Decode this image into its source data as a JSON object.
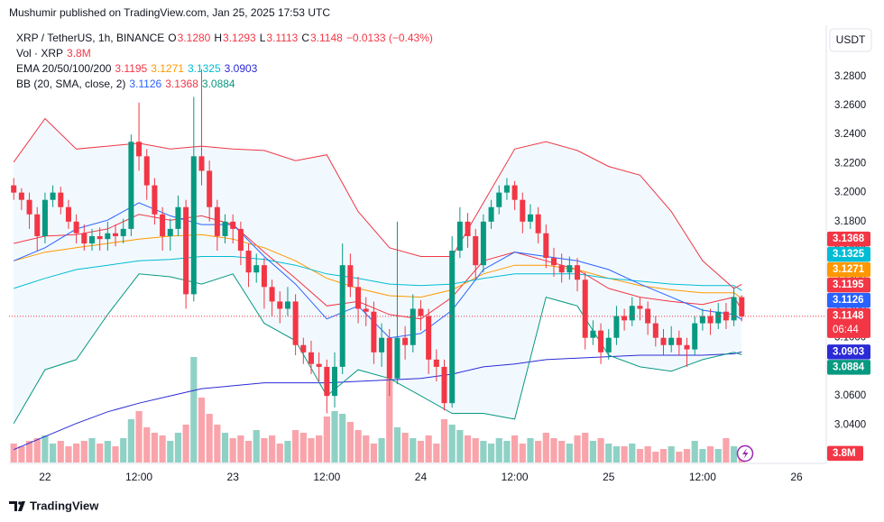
{
  "header": "Mushumir published on TradingView.com, Jan 25, 2025 17:53 UTC",
  "footer": "TradingView",
  "currency_button": "USDT",
  "chart_data": {
    "type": "candlestick",
    "symbol": "XRP / TetherUS, 1h, BINANCE",
    "ohlc_letters": [
      "O",
      "H",
      "L",
      "C"
    ],
    "last_bar_labels": [
      "3.1280",
      "3.1293",
      "3.1113",
      "3.1148"
    ],
    "change": "−0.0133 (−0.43%)",
    "countdown": "06:44",
    "up_color": "#089981",
    "down_color": "#f23645",
    "ohlc": [
      [
        3.205,
        3.21,
        3.195,
        3.2
      ],
      [
        3.2,
        3.203,
        3.188,
        3.195
      ],
      [
        3.195,
        3.2,
        3.175,
        3.185
      ],
      [
        3.185,
        3.19,
        3.16,
        3.17
      ],
      [
        3.17,
        3.2,
        3.165,
        3.195
      ],
      [
        3.195,
        3.205,
        3.19,
        3.2
      ],
      [
        3.2,
        3.204,
        3.185,
        3.19
      ],
      [
        3.19,
        3.195,
        3.175,
        3.18
      ],
      [
        3.18,
        3.185,
        3.165,
        3.172
      ],
      [
        3.172,
        3.178,
        3.16,
        3.165
      ],
      [
        3.165,
        3.175,
        3.16,
        3.17
      ],
      [
        3.17,
        3.176,
        3.16,
        3.168
      ],
      [
        3.168,
        3.18,
        3.16,
        3.172
      ],
      [
        3.172,
        3.178,
        3.163,
        3.17
      ],
      [
        3.17,
        3.182,
        3.165,
        3.175
      ],
      [
        3.175,
        3.24,
        3.17,
        3.235
      ],
      [
        3.235,
        3.262,
        3.215,
        3.225
      ],
      [
        3.225,
        3.23,
        3.195,
        3.205
      ],
      [
        3.205,
        3.21,
        3.178,
        3.185
      ],
      [
        3.185,
        3.19,
        3.16,
        3.17
      ],
      [
        3.17,
        3.182,
        3.16,
        3.175
      ],
      [
        3.175,
        3.198,
        3.17,
        3.19
      ],
      [
        3.19,
        3.195,
        3.12,
        3.13
      ],
      [
        3.13,
        3.266,
        3.125,
        3.225
      ],
      [
        3.225,
        3.285,
        3.205,
        3.215
      ],
      [
        3.215,
        3.222,
        3.18,
        3.19
      ],
      [
        3.19,
        3.195,
        3.16,
        3.17
      ],
      [
        3.17,
        3.185,
        3.165,
        3.18
      ],
      [
        3.18,
        3.185,
        3.165,
        3.175
      ],
      [
        3.175,
        3.18,
        3.15,
        3.16
      ],
      [
        3.16,
        3.165,
        3.135,
        3.145
      ],
      [
        3.145,
        3.158,
        3.138,
        3.15
      ],
      [
        3.15,
        3.155,
        3.12,
        3.135
      ],
      [
        3.135,
        3.14,
        3.115,
        3.125
      ],
      [
        3.125,
        3.132,
        3.11,
        3.12
      ],
      [
        3.12,
        3.135,
        3.115,
        3.125
      ],
      [
        3.125,
        3.13,
        3.088,
        3.095
      ],
      [
        3.095,
        3.1,
        3.082,
        3.09
      ],
      [
        3.09,
        3.098,
        3.075,
        3.082
      ],
      [
        3.082,
        3.09,
        3.07,
        3.08
      ],
      [
        3.08,
        3.085,
        3.048,
        3.06
      ],
      [
        3.06,
        3.09,
        3.052,
        3.08
      ],
      [
        3.08,
        3.165,
        3.075,
        3.15
      ],
      [
        3.15,
        3.158,
        3.128,
        3.135
      ],
      [
        3.135,
        3.142,
        3.11,
        3.12
      ],
      [
        3.12,
        3.128,
        3.108,
        3.118
      ],
      [
        3.118,
        3.125,
        3.082,
        3.09
      ],
      [
        3.09,
        3.11,
        3.08,
        3.1
      ],
      [
        3.1,
        3.106,
        3.06,
        3.072
      ],
      [
        3.072,
        3.18,
        3.068,
        3.1
      ],
      [
        3.1,
        3.108,
        3.085,
        3.095
      ],
      [
        3.095,
        3.13,
        3.09,
        3.12
      ],
      [
        3.12,
        3.126,
        3.105,
        3.115
      ],
      [
        3.115,
        3.12,
        3.075,
        3.085
      ],
      [
        3.085,
        3.092,
        3.07,
        3.08
      ],
      [
        3.08,
        3.085,
        3.05,
        3.055
      ],
      [
        3.055,
        3.17,
        3.052,
        3.16
      ],
      [
        3.16,
        3.19,
        3.155,
        3.18
      ],
      [
        3.18,
        3.186,
        3.162,
        3.17
      ],
      [
        3.17,
        3.175,
        3.14,
        3.15
      ],
      [
        3.15,
        3.185,
        3.145,
        3.18
      ],
      [
        3.18,
        3.195,
        3.175,
        3.19
      ],
      [
        3.19,
        3.205,
        3.185,
        3.2
      ],
      [
        3.2,
        3.21,
        3.195,
        3.205
      ],
      [
        3.205,
        3.208,
        3.188,
        3.195
      ],
      [
        3.195,
        3.2,
        3.172,
        3.18
      ],
      [
        3.18,
        3.192,
        3.175,
        3.185
      ],
      [
        3.185,
        3.19,
        3.165,
        3.172
      ],
      [
        3.172,
        3.178,
        3.148,
        3.155
      ],
      [
        3.155,
        3.162,
        3.142,
        3.15
      ],
      [
        3.15,
        3.158,
        3.138,
        3.145
      ],
      [
        3.145,
        3.156,
        3.14,
        3.15
      ],
      [
        3.15,
        3.155,
        3.132,
        3.14
      ],
      [
        3.14,
        3.145,
        3.092,
        3.1
      ],
      [
        3.1,
        3.112,
        3.095,
        3.105
      ],
      [
        3.105,
        3.11,
        3.082,
        3.09
      ],
      [
        3.09,
        3.106,
        3.085,
        3.1
      ],
      [
        3.1,
        3.122,
        3.095,
        3.115
      ],
      [
        3.115,
        3.12,
        3.105,
        3.112
      ],
      [
        3.112,
        3.128,
        3.108,
        3.122
      ],
      [
        3.122,
        3.128,
        3.112,
        3.12
      ],
      [
        3.12,
        3.125,
        3.102,
        3.11
      ],
      [
        3.11,
        3.115,
        3.094,
        3.1
      ],
      [
        3.1,
        3.106,
        3.088,
        3.095
      ],
      [
        3.095,
        3.108,
        3.09,
        3.1
      ],
      [
        3.1,
        3.105,
        3.088,
        3.095
      ],
      [
        3.095,
        3.1,
        3.08,
        3.092
      ],
      [
        3.092,
        3.115,
        3.088,
        3.11
      ],
      [
        3.11,
        3.12,
        3.105,
        3.115
      ],
      [
        3.115,
        3.12,
        3.102,
        3.11
      ],
      [
        3.11,
        3.124,
        3.106,
        3.118
      ],
      [
        3.118,
        3.124,
        3.106,
        3.112
      ],
      [
        3.112,
        3.135,
        3.108,
        3.128
      ],
      [
        3.128,
        3.1293,
        3.1113,
        3.1148
      ]
    ],
    "volume": {
      "name": "Vol · XRP",
      "ylim": [
        0,
        160000000
      ],
      "values": [
        6000000,
        5000000,
        7000000,
        8000000,
        9000000,
        6000000,
        7000000,
        5000000,
        6000000,
        7000000,
        8000000,
        6000000,
        7000000,
        5000000,
        8000000,
        15000000,
        18000000,
        12000000,
        10000000,
        9000000,
        7000000,
        10000000,
        13000000,
        38000000,
        23000000,
        17000000,
        13000000,
        10000000,
        8000000,
        9000000,
        7000000,
        11000000,
        8000000,
        9000000,
        6000000,
        7000000,
        11000000,
        10000000,
        8000000,
        9000000,
        16000000,
        18000000,
        17000000,
        14000000,
        11000000,
        9000000,
        6000000,
        8000000,
        30000000,
        12000000,
        10000000,
        8000000,
        7000000,
        9000000,
        6000000,
        15000000,
        13000000,
        11000000,
        9000000,
        8000000,
        7000000,
        6000000,
        8000000,
        7000000,
        9000000,
        6000000,
        8000000,
        7000000,
        10000000,
        8000000,
        7000000,
        6000000,
        9000000,
        10000000,
        7000000,
        8000000,
        6000000,
        5000000,
        5000000,
        6000000,
        4000000,
        5000000,
        3000000,
        4000000,
        5000000,
        3000000,
        4000000,
        7000000,
        4000000,
        5000000,
        4000000,
        8000000,
        5000000,
        3800000
      ],
      "value_labels": [
        null,
        null,
        null,
        null,
        null,
        null,
        null,
        null,
        null,
        null,
        null,
        null,
        null,
        null,
        null,
        null,
        null,
        null,
        null,
        null,
        null,
        null,
        null,
        null,
        null,
        null,
        null,
        null,
        null,
        null,
        null,
        null,
        null,
        null,
        null,
        null,
        null,
        null,
        null,
        null,
        null,
        null,
        null,
        null,
        null,
        null,
        null,
        null,
        null,
        null,
        null,
        null,
        null,
        null,
        null,
        null,
        null,
        null,
        null,
        null,
        null,
        null,
        null,
        null,
        null,
        null,
        null,
        null,
        null,
        null,
        null,
        null,
        null,
        null,
        null,
        null,
        null,
        null,
        null,
        null,
        null,
        null,
        null,
        null,
        null,
        null,
        null,
        null,
        null,
        null,
        null,
        null,
        null,
        "3.8M"
      ]
    },
    "line_x": [
      0,
      4,
      8,
      12,
      16,
      20,
      24,
      28,
      32,
      36,
      40,
      44,
      48,
      52,
      56,
      60,
      64,
      68,
      72,
      76,
      80,
      84,
      88,
      92,
      93
    ],
    "indicators": [
      {
        "name": "EMA 20/50/100/200",
        "lines": [
          {
            "color": "#f23645",
            "values": [
              3.165,
              3.17,
              3.171,
              3.175,
              3.185,
              3.181,
              3.184,
              3.178,
              3.159,
              3.141,
              3.122,
              3.125,
              3.116,
              3.113,
              3.128,
              3.153,
              3.159,
              3.153,
              3.147,
              3.134,
              3.128,
              3.125,
              3.123,
              3.128,
              3.1195
            ]
          },
          {
            "color": "#ff9800",
            "values": [
              3.153,
              3.159,
              3.162,
              3.165,
              3.168,
              3.17,
              3.171,
              3.168,
              3.162,
              3.153,
              3.141,
              3.134,
              3.129,
              3.128,
              3.133,
              3.144,
              3.15,
              3.15,
              3.147,
              3.141,
              3.136,
              3.133,
              3.131,
              3.131,
              3.1271
            ]
          },
          {
            "color": "#00bcd4",
            "values": [
              3.134,
              3.141,
              3.147,
              3.15,
              3.153,
              3.154,
              3.156,
              3.156,
              3.154,
              3.15,
              3.144,
              3.141,
              3.137,
              3.136,
              3.137,
              3.141,
              3.144,
              3.144,
              3.144,
              3.141,
              3.139,
              3.137,
              3.136,
              3.136,
              3.1325
            ]
          },
          {
            "color": "#2a2ad6",
            "values": [
              3.023,
              3.032,
              3.041,
              3.049,
              3.055,
              3.06,
              3.065,
              3.067,
              3.069,
              3.069,
              3.069,
              3.07,
              3.071,
              3.072,
              3.075,
              3.08,
              3.082,
              3.085,
              3.086,
              3.087,
              3.088,
              3.088,
              3.088,
              3.089,
              3.0903
            ]
          }
        ]
      },
      {
        "name": "BB (20, SMA, close, 2)",
        "fill": "#2196f3",
        "lines": [
          {
            "color": "#2962ff",
            "values": [
              3.153,
              3.162,
              3.175,
              3.181,
              3.193,
              3.184,
              3.178,
              3.178,
              3.156,
              3.137,
              3.113,
              3.122,
              3.1,
              3.103,
              3.119,
              3.147,
              3.159,
              3.156,
              3.153,
              3.147,
              3.137,
              3.128,
              3.119,
              3.116,
              3.1126
            ]
          },
          {
            "color": "#f23645",
            "values": [
              3.221,
              3.251,
              3.23,
              3.232,
              3.234,
              3.23,
              3.232,
              3.23,
              3.229,
              3.222,
              3.226,
              3.187,
              3.162,
              3.156,
              3.156,
              3.193,
              3.23,
              3.235,
              3.229,
              3.218,
              3.212,
              3.187,
              3.153,
              3.134,
              3.1368
            ]
          },
          {
            "color": "#089981",
            "values": [
              3.041,
              3.078,
              3.085,
              3.116,
              3.144,
              3.142,
              3.137,
              3.144,
              3.11,
              3.098,
              3.06,
              3.078,
              3.072,
              3.06,
              3.048,
              3.048,
              3.044,
              3.128,
              3.122,
              3.088,
              3.08,
              3.077,
              3.085,
              3.09,
              3.0884
            ]
          }
        ]
      }
    ],
    "xlim": [
      -0.6,
      103.8
    ],
    "xticks": [
      {
        "value": 4,
        "label": "22"
      },
      {
        "value": 16,
        "label": "12:00"
      },
      {
        "value": 28,
        "label": "23"
      },
      {
        "value": 40,
        "label": "12:00"
      },
      {
        "value": 52,
        "label": "24"
      },
      {
        "value": 64,
        "label": "12:00"
      },
      {
        "value": 76,
        "label": "25"
      },
      {
        "value": 88,
        "label": "12:00"
      },
      {
        "value": 100,
        "label": "26"
      }
    ],
    "ylim": [
      3.016,
      3.314
    ],
    "yticks": [
      {
        "value": 3.04,
        "label": "3.0400"
      },
      {
        "value": 3.06,
        "label": "3.0600"
      },
      {
        "value": 3.08,
        "label": "3.0800"
      },
      {
        "value": 3.1,
        "label": "3.1000"
      },
      {
        "value": 3.12,
        "label": "3.1200"
      },
      {
        "value": 3.14,
        "label": "3.1400"
      },
      {
        "value": 3.16,
        "label": "3.1600"
      },
      {
        "value": 3.18,
        "label": "3.1800"
      },
      {
        "value": 3.2,
        "label": "3.2000"
      },
      {
        "value": 3.22,
        "label": "3.2200"
      },
      {
        "value": 3.24,
        "label": "3.2400"
      },
      {
        "value": 3.26,
        "label": "3.2600"
      },
      {
        "value": 3.28,
        "label": "3.2800"
      }
    ]
  }
}
